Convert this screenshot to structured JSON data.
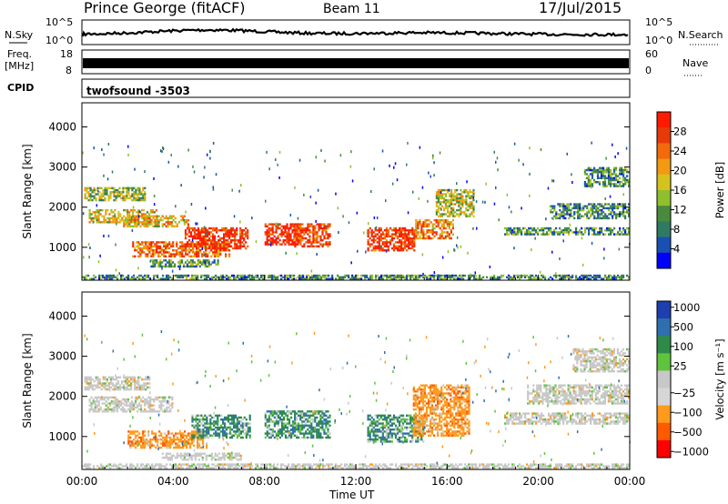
{
  "header": {
    "station": "Prince George (fitACF)",
    "beam": "Beam 11",
    "date": "17/Jul/2015"
  },
  "top_panels": {
    "nsky_label": "N.Sky",
    "nsky_ticks": [
      "10^5",
      "10^0"
    ],
    "nsearch_label": "N.Search",
    "nsearch_ticks": [
      "10^5",
      "10^0"
    ],
    "freq_label_1": "Freq.",
    "freq_label_2": "[MHz]",
    "freq_ticks": [
      "18",
      "8"
    ],
    "nave_label": "Nave",
    "nave_ticks": [
      "60",
      "0"
    ],
    "cpid_label": "CPID",
    "cpid_text": "twofsound -3503"
  },
  "colors": {
    "power_scale": [
      "#0000ff",
      "#1a4fb3",
      "#2f7a63",
      "#4a8a3e",
      "#8fbf2e",
      "#d6c21d",
      "#f29a13",
      "#f26a0c",
      "#e83a08",
      "#ff1a00"
    ],
    "velocity_scale": [
      "#ff0000",
      "#ff5a00",
      "#ff9a1c",
      "#d6d6d6",
      "#c8c8c8",
      "#5ec43c",
      "#2f8a4a",
      "#2e6fb0",
      "#1e3fb0"
    ]
  },
  "chart_data": [
    {
      "type": "heatmap",
      "name_key": "power",
      "xlabel": "",
      "ylabel": "Slant Range [km]",
      "x_ticks": [
        "00:00",
        "04:00",
        "08:00",
        "12:00",
        "16:00",
        "20:00",
        "00:00"
      ],
      "y_ticks": [
        1000,
        2000,
        3000,
        4000
      ],
      "xlim_hours": [
        0,
        24
      ],
      "ylim_km": [
        180,
        4600
      ],
      "colorbar_label": "Power [dB]",
      "colorbar_ticks": [
        4,
        8,
        12,
        16,
        20,
        24,
        28
      ],
      "colorbar_range": [
        0,
        32
      ],
      "regions": [
        {
          "t0": 0.3,
          "t1": 3.3,
          "r0": 1600,
          "r1": 1950,
          "level": 0.55
        },
        {
          "t0": 0.1,
          "t1": 2.8,
          "r0": 2150,
          "r1": 2500,
          "level": 0.45
        },
        {
          "t0": 1.8,
          "t1": 4.7,
          "r0": 1500,
          "r1": 1800,
          "level": 0.6
        },
        {
          "t0": 2.2,
          "t1": 6.5,
          "r0": 750,
          "r1": 1150,
          "level": 0.75
        },
        {
          "t0": 4.5,
          "t1": 7.3,
          "r0": 950,
          "r1": 1500,
          "level": 0.9
        },
        {
          "t0": 3.0,
          "t1": 6.0,
          "r0": 500,
          "r1": 700,
          "level": 0.35
        },
        {
          "t0": 8.0,
          "t1": 9.5,
          "r0": 1050,
          "r1": 1600,
          "level": 0.95
        },
        {
          "t0": 9.3,
          "t1": 10.9,
          "r0": 1000,
          "r1": 1600,
          "level": 0.85
        },
        {
          "t0": 12.5,
          "t1": 14.6,
          "r0": 900,
          "r1": 1500,
          "level": 0.9
        },
        {
          "t0": 14.6,
          "t1": 16.3,
          "r0": 1200,
          "r1": 1700,
          "level": 0.7
        },
        {
          "t0": 15.5,
          "t1": 17.2,
          "r0": 1750,
          "r1": 2450,
          "level": 0.5
        },
        {
          "t0": 18.5,
          "t1": 24.0,
          "r0": 1300,
          "r1": 1500,
          "level": 0.3
        },
        {
          "t0": 20.5,
          "t1": 24.0,
          "r0": 1700,
          "r1": 2100,
          "level": 0.3
        },
        {
          "t0": 22.0,
          "t1": 24.0,
          "r0": 2500,
          "r1": 3000,
          "level": 0.3
        },
        {
          "t0": 0.0,
          "t1": 24.0,
          "r0": 200,
          "r1": 320,
          "level": 0.3
        }
      ]
    },
    {
      "type": "heatmap",
      "name_key": "velocity",
      "xlabel": "Time UT",
      "ylabel": "Slant Range [km]",
      "x_ticks": [
        "00:00",
        "04:00",
        "08:00",
        "12:00",
        "16:00",
        "20:00",
        "00:00"
      ],
      "y_ticks": [
        1000,
        2000,
        3000,
        4000
      ],
      "xlim_hours": [
        0,
        24
      ],
      "ylim_km": [
        180,
        4600
      ],
      "colorbar_label": "Velocity [m s⁻¹]",
      "colorbar_ticks": [
        "1000",
        "500",
        "100",
        "25",
        "−25",
        "−100",
        "−500",
        "−1000"
      ],
      "regions": [
        {
          "t0": 0.3,
          "t1": 4.0,
          "r0": 1600,
          "r1": 2000,
          "kind": "gray"
        },
        {
          "t0": 0.1,
          "t1": 3.0,
          "r0": 2150,
          "r1": 2500,
          "kind": "gray"
        },
        {
          "t0": 2.0,
          "t1": 5.5,
          "r0": 700,
          "r1": 1150,
          "kind": "orange"
        },
        {
          "t0": 4.8,
          "t1": 7.4,
          "r0": 950,
          "r1": 1550,
          "kind": "green"
        },
        {
          "t0": 3.5,
          "t1": 7.0,
          "r0": 400,
          "r1": 600,
          "kind": "gray"
        },
        {
          "t0": 8.0,
          "t1": 10.9,
          "r0": 950,
          "r1": 1650,
          "kind": "green"
        },
        {
          "t0": 12.5,
          "t1": 15.0,
          "r0": 850,
          "r1": 1550,
          "kind": "green"
        },
        {
          "t0": 14.5,
          "t1": 17.0,
          "r0": 1000,
          "r1": 2300,
          "kind": "orange"
        },
        {
          "t0": 18.5,
          "t1": 24.0,
          "r0": 1300,
          "r1": 1600,
          "kind": "gray"
        },
        {
          "t0": 19.5,
          "t1": 24.0,
          "r0": 1800,
          "r1": 2300,
          "kind": "gray"
        },
        {
          "t0": 21.5,
          "t1": 24.0,
          "r0": 2600,
          "r1": 3200,
          "kind": "gray"
        },
        {
          "t0": 0.0,
          "t1": 24.0,
          "r0": 200,
          "r1": 330,
          "kind": "gray"
        }
      ]
    }
  ]
}
